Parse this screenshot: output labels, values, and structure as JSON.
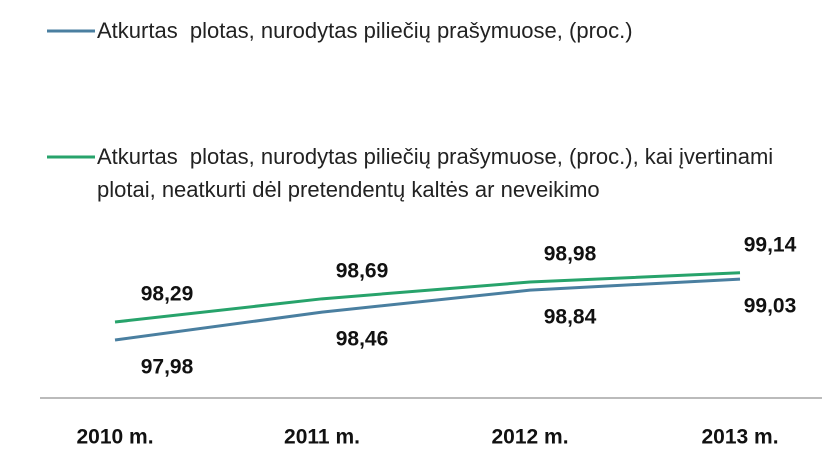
{
  "chart_data": {
    "type": "line",
    "categories": [
      "2010 m.",
      "2011 m.",
      "2012 m.",
      "2013 m."
    ],
    "series": [
      {
        "name": "Atkurtas  plotas, nurodytas piliečių prašymuose, (proc.)",
        "color": "#4a7fa0",
        "values": [
          97.98,
          98.46,
          98.84,
          99.03
        ],
        "value_labels": [
          "97,98",
          "98,46",
          "98,84",
          "99,03"
        ]
      },
      {
        "name": "Atkurtas  plotas, nurodytas piliečių prašymuose, (proc.), kai įvertinami plotai, neatkurti dėl pretendentų kaltės ar neveikimo",
        "color": "#27a36b",
        "values": [
          98.29,
          98.69,
          98.98,
          99.14
        ],
        "value_labels": [
          "98,29",
          "98,69",
          "98,98",
          "99,14"
        ]
      }
    ]
  }
}
